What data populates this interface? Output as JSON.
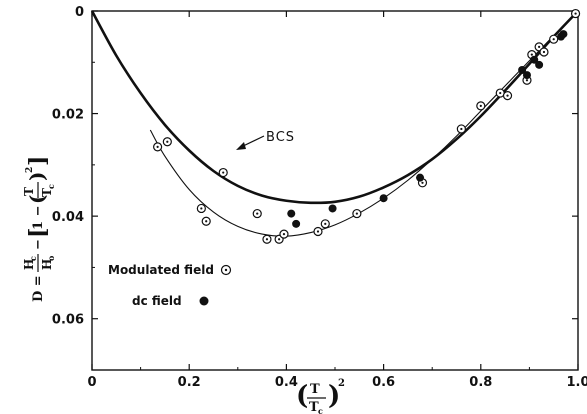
{
  "chart_data": {
    "type": "scatter",
    "xlim": [
      0,
      1.0
    ],
    "ylim": [
      0,
      0.07
    ],
    "y_inverted": true,
    "grid": false,
    "legend_position": "bottom-left",
    "x_ticks": [
      0,
      0.2,
      0.4,
      0.6,
      0.8,
      1.0
    ],
    "x_tick_labels": [
      "0",
      "0.2",
      "0.4",
      "0.6",
      "0.8",
      "1.0"
    ],
    "y_ticks": [
      0,
      0.02,
      0.04,
      0.06
    ],
    "y_tick_labels": [
      "0",
      "0.02",
      "0.04",
      "0.06"
    ],
    "xlabel": {
      "T": "T",
      "Tc": "T",
      "c": "c",
      "exp": "2"
    },
    "ylabel": {
      "D": "D =",
      "Hc": "H",
      "Ho": "H",
      "c": "c",
      "o": "o",
      "minus": "−",
      "one": "1 −",
      "T": "T",
      "Tc": "T",
      "exp": "2"
    },
    "annotations": [
      {
        "text": "BCS",
        "points_to": "BCS curve"
      }
    ],
    "legend": [
      {
        "label": "Modulated field",
        "marker": "dotted-circle"
      },
      {
        "label": "dc field",
        "marker": "filled-circle"
      }
    ],
    "curves": [
      {
        "name": "BCS",
        "style": "thick",
        "x": [
          0.0,
          0.05,
          0.1,
          0.15,
          0.2,
          0.25,
          0.3,
          0.35,
          0.4,
          0.45,
          0.5,
          0.55,
          0.6,
          0.65,
          0.7,
          0.75,
          0.8,
          0.85,
          0.9,
          0.95,
          1.0
        ],
        "y": [
          0.0,
          0.0087,
          0.016,
          0.0222,
          0.0272,
          0.0312,
          0.0341,
          0.036,
          0.037,
          0.0374,
          0.0372,
          0.0362,
          0.0344,
          0.032,
          0.0289,
          0.025,
          0.0205,
          0.0155,
          0.0103,
          0.005,
          0.0
        ]
      },
      {
        "name": "fit",
        "style": "thin",
        "x": [
          0.12,
          0.15,
          0.2,
          0.25,
          0.3,
          0.35,
          0.4,
          0.45,
          0.5,
          0.55,
          0.6,
          0.65,
          0.7,
          0.75,
          0.8,
          0.85,
          0.9,
          0.95,
          1.0
        ],
        "y": [
          0.0232,
          0.0283,
          0.0348,
          0.0392,
          0.042,
          0.0435,
          0.0439,
          0.0432,
          0.0417,
          0.0394,
          0.0365,
          0.033,
          0.0289,
          0.0244,
          0.0195,
          0.0146,
          0.0097,
          0.0048,
          0.0
        ]
      }
    ],
    "series": [
      {
        "name": "Modulated field",
        "marker": "dotted-circle",
        "points": [
          [
            0.135,
            0.0265
          ],
          [
            0.155,
            0.0255
          ],
          [
            0.225,
            0.0385
          ],
          [
            0.235,
            0.041
          ],
          [
            0.27,
            0.0315
          ],
          [
            0.34,
            0.0395
          ],
          [
            0.36,
            0.0445
          ],
          [
            0.385,
            0.0445
          ],
          [
            0.395,
            0.0435
          ],
          [
            0.465,
            0.043
          ],
          [
            0.48,
            0.0415
          ],
          [
            0.545,
            0.0395
          ],
          [
            0.68,
            0.0335
          ],
          [
            0.76,
            0.023
          ],
          [
            0.8,
            0.0185
          ],
          [
            0.84,
            0.016
          ],
          [
            0.855,
            0.0165
          ],
          [
            0.895,
            0.0135
          ],
          [
            0.905,
            0.0085
          ],
          [
            0.92,
            0.007
          ],
          [
            0.93,
            0.008
          ],
          [
            0.95,
            0.0055
          ],
          [
            0.995,
            0.0005
          ]
        ]
      },
      {
        "name": "dc field",
        "marker": "filled-circle",
        "points": [
          [
            0.41,
            0.0395
          ],
          [
            0.42,
            0.0415
          ],
          [
            0.495,
            0.0385
          ],
          [
            0.6,
            0.0365
          ],
          [
            0.675,
            0.0325
          ],
          [
            0.885,
            0.0115
          ],
          [
            0.895,
            0.0125
          ],
          [
            0.91,
            0.0095
          ],
          [
            0.92,
            0.0105
          ],
          [
            0.965,
            0.005
          ],
          [
            0.97,
            0.0045
          ]
        ]
      }
    ]
  }
}
